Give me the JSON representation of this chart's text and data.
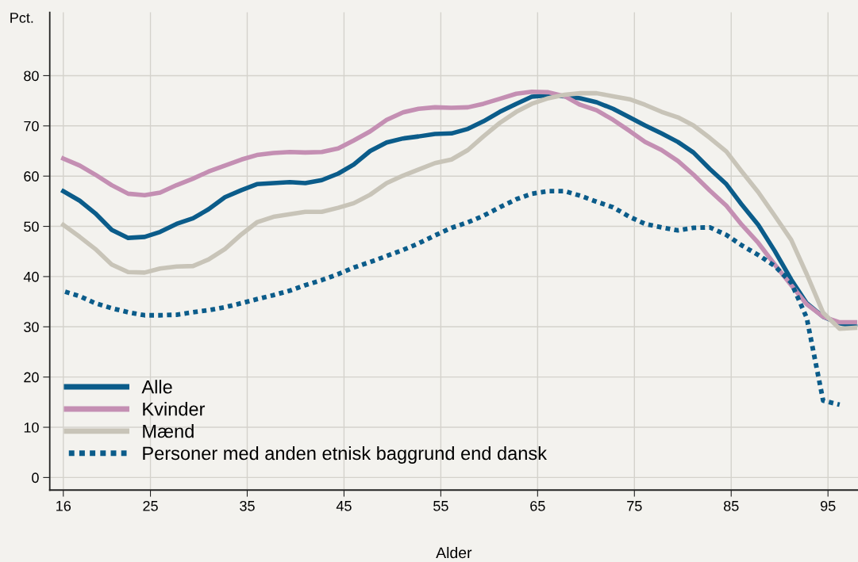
{
  "chart_data": {
    "type": "line",
    "xlabel": "Alder",
    "ylabel": "Pct.",
    "x": [
      16,
      17.7,
      19.3,
      21,
      22.7,
      24.4,
      26,
      27.7,
      29.4,
      31,
      32.7,
      34.4,
      36,
      37.7,
      39.4,
      41,
      42.7,
      44.4,
      46,
      47.7,
      49.4,
      51.1,
      52.7,
      54.4,
      56.1,
      57.8,
      59.4,
      61.1,
      62.8,
      64.4,
      66.1,
      67.8,
      69.4,
      71.1,
      72.8,
      74.5,
      76.1,
      77.8,
      79.5,
      81.1,
      82.8,
      84.5,
      86.1,
      87.8,
      89.5,
      91.2,
      92.8,
      94.5,
      96.2,
      97.8
    ],
    "series": [
      {
        "name": "Alle",
        "color": "#0b5c8a",
        "line_style": "solid",
        "values": [
          57.0,
          55.1,
          52.6,
          49.3,
          47.7,
          47.9,
          48.9,
          50.5,
          51.6,
          53.4,
          55.8,
          57.2,
          58.4,
          58.6,
          58.8,
          58.6,
          59.2,
          60.5,
          62.3,
          65.0,
          66.7,
          67.5,
          67.9,
          68.4,
          68.5,
          69.4,
          70.9,
          72.8,
          74.4,
          75.8,
          76.1,
          75.9,
          75.5,
          74.7,
          73.4,
          71.7,
          70.1,
          68.5,
          66.8,
          64.7,
          61.4,
          58.4,
          54.3,
          50.3,
          45.1,
          39.4,
          34.7,
          32.0,
          30.7,
          30.1
        ]
      },
      {
        "name": "Kvinder",
        "color": "#c48fb3",
        "line_style": "solid",
        "values": [
          63.5,
          62.1,
          60.3,
          58.2,
          56.5,
          56.2,
          56.7,
          58.2,
          59.5,
          60.9,
          62.1,
          63.3,
          64.2,
          64.6,
          64.8,
          64.7,
          64.8,
          65.5,
          67.1,
          68.9,
          71.2,
          72.7,
          73.4,
          73.7,
          73.6,
          73.7,
          74.4,
          75.4,
          76.4,
          76.8,
          76.7,
          75.9,
          74.2,
          73.1,
          71.2,
          69.0,
          66.8,
          65.2,
          63.0,
          60.3,
          57.1,
          54.1,
          50.3,
          46.7,
          42.4,
          38.3,
          34.5,
          32.0,
          30.9,
          30.9
        ]
      },
      {
        "name": "Mænd",
        "color": "#c8c4b8",
        "line_style": "solid",
        "values": [
          50.3,
          47.9,
          45.5,
          42.4,
          40.9,
          40.8,
          41.6,
          42.0,
          42.1,
          43.4,
          45.5,
          48.4,
          50.8,
          51.9,
          52.4,
          52.9,
          52.9,
          53.7,
          54.6,
          56.3,
          58.6,
          60.1,
          61.3,
          62.6,
          63.3,
          65.2,
          67.9,
          70.6,
          72.8,
          74.4,
          75.5,
          76.2,
          76.5,
          76.5,
          75.9,
          75.3,
          74.2,
          72.8,
          71.7,
          70.1,
          67.6,
          64.9,
          60.9,
          56.8,
          52.1,
          47.3,
          40.5,
          32.8,
          29.6,
          29.8
        ]
      },
      {
        "name": "Personer med anden etnisk baggrund end dansk",
        "color": "#0b5c8a",
        "line_style": "dotted",
        "values": [
          37.1,
          36.1,
          34.7,
          33.7,
          32.9,
          32.3,
          32.3,
          32.4,
          32.9,
          33.3,
          33.9,
          34.7,
          35.5,
          36.3,
          37.2,
          38.3,
          39.3,
          40.5,
          41.8,
          42.9,
          44.1,
          45.3,
          46.6,
          48.2,
          49.7,
          50.8,
          52.1,
          53.8,
          55.4,
          56.5,
          57.0,
          57.0,
          56.1,
          54.9,
          53.8,
          51.9,
          50.5,
          49.8,
          49.2,
          49.7,
          49.8,
          48.3,
          46.2,
          44.3,
          42.1,
          38.8,
          31.8,
          15.3,
          14.5,
          null
        ]
      }
    ],
    "xlim": [
      14.6,
      98.1
    ],
    "xticks": [
      16,
      25,
      35,
      45,
      55,
      65,
      75,
      85,
      95
    ],
    "ylim": [
      -2.5,
      92.6
    ],
    "yticks": [
      0,
      10,
      20,
      30,
      40,
      50,
      60,
      70,
      80
    ],
    "grid": true,
    "legend": "bottom left",
    "marker": "none"
  }
}
